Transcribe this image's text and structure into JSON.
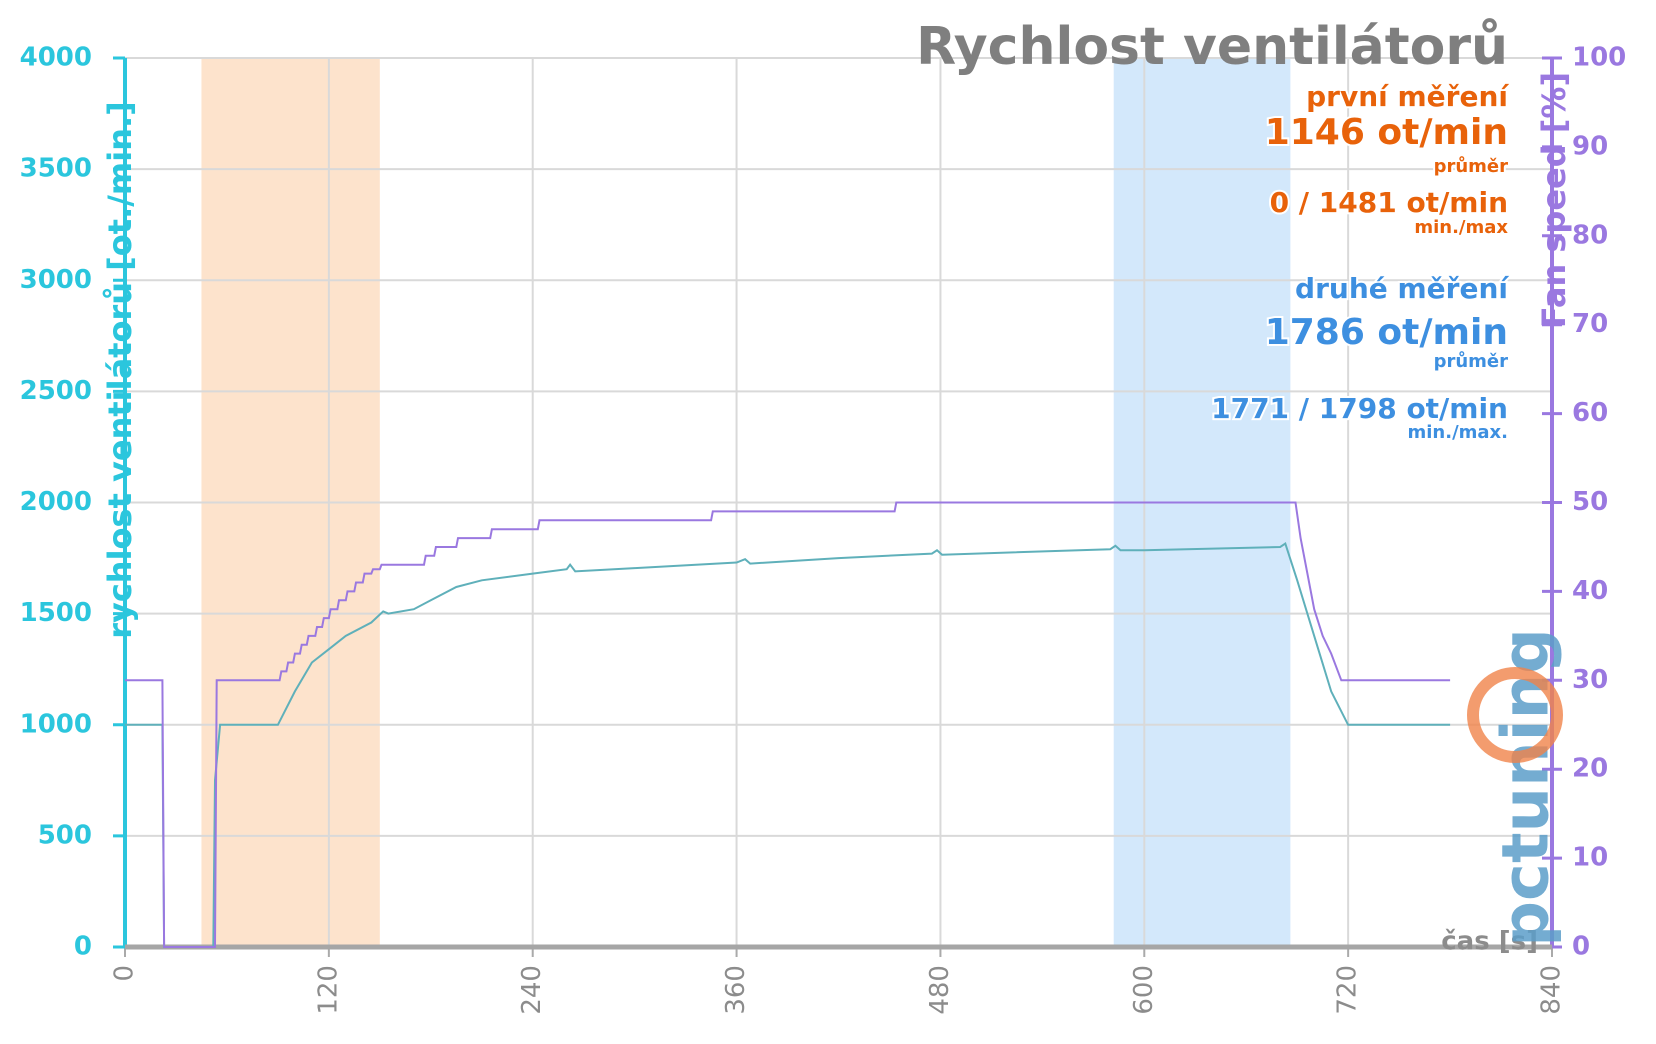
{
  "chart_data": {
    "type": "line",
    "title": "Rychlost ventilátorů",
    "ylabel": "rychlost ventilátorů [ot./min.]",
    "y2label": "Fan speed [%]",
    "xlabel": "čas [s]",
    "logo": "pctuning",
    "xlim": [
      0,
      840
    ],
    "xticks": [
      0,
      120,
      240,
      360,
      480,
      600,
      720,
      840
    ],
    "ylim": [
      0,
      4000
    ],
    "yticks": [
      0,
      500,
      1000,
      1500,
      2000,
      2500,
      3000,
      3500,
      4000
    ],
    "y2lim": [
      0,
      100
    ],
    "y2ticks": [
      0,
      10,
      20,
      30,
      40,
      50,
      60,
      70,
      80,
      90,
      100
    ],
    "grid": true,
    "highlights": [
      {
        "from": 45,
        "to": 150,
        "color": "#fde3cc"
      },
      {
        "from": 582,
        "to": 686,
        "color": "#d3e8fb"
      }
    ],
    "annotations": [
      {
        "text": "první měření",
        "color": "#e8620a",
        "size": 28
      },
      {
        "text": "1146 ot/min",
        "color": "#e8620a",
        "size": 36
      },
      {
        "text": "průměr",
        "color": "#e8620a",
        "size": 18
      },
      {
        "text": "0 / 1481 ot/min",
        "color": "#e8620a",
        "size": 28
      },
      {
        "text": "min./max",
        "color": "#e8620a",
        "size": 18
      },
      {
        "text": "druhé měření",
        "color": "#3d8fe0",
        "size": 28
      },
      {
        "text": "1786 ot/min",
        "color": "#3d8fe0",
        "size": 36
      },
      {
        "text": "průměr",
        "color": "#3d8fe0",
        "size": 18
      },
      {
        "text": "1771 / 1798 ot/min",
        "color": "#3d8fe0",
        "size": 28
      },
      {
        "text": "min./max.",
        "color": "#3d8fe0",
        "size": 18
      }
    ],
    "series": [
      {
        "color": "#5fb0ba",
        "x": [
          0,
          22,
          23,
          52,
          53,
          56,
          90,
          100,
          110,
          120,
          130,
          145,
          152,
          155,
          170,
          180,
          195,
          210,
          240,
          260,
          262,
          265,
          300,
          360,
          365,
          368,
          420,
          475,
          478,
          481,
          580,
          583,
          586,
          600,
          680,
          683,
          690,
          700,
          710,
          720,
          780
        ],
        "values": [
          1000,
          1000,
          0,
          0,
          750,
          1000,
          1000,
          1150,
          1280,
          1340,
          1400,
          1460,
          1510,
          1500,
          1520,
          1560,
          1620,
          1650,
          1680,
          1700,
          1720,
          1690,
          1705,
          1730,
          1745,
          1725,
          1750,
          1770,
          1785,
          1765,
          1790,
          1805,
          1785,
          1785,
          1800,
          1815,
          1650,
          1400,
          1150,
          1000,
          1000
        ]
      },
      {
        "color": "#9a78e0",
        "axis": "y2",
        "x": [
          0,
          22,
          23,
          53,
          54,
          91,
          92,
          95,
          96,
          99,
          100,
          103,
          104,
          107,
          108,
          112,
          113,
          116,
          117,
          120,
          121,
          125,
          126,
          130,
          131,
          135,
          136,
          140,
          141,
          145,
          146,
          150,
          151,
          176,
          177,
          182,
          183,
          195,
          196,
          215,
          216,
          243,
          244,
          345,
          346,
          453,
          454,
          689,
          692,
          696,
          700,
          705,
          710,
          716,
          780
        ],
        "values": [
          30,
          30,
          0,
          0,
          30,
          30,
          31,
          31,
          32,
          32,
          33,
          33,
          34,
          34,
          35,
          35,
          36,
          36,
          37,
          37,
          38,
          38,
          39,
          39,
          40,
          40,
          41,
          41,
          42,
          42,
          42.5,
          42.5,
          43,
          43,
          44,
          44,
          45,
          45,
          46,
          46,
          47,
          47,
          48,
          48,
          49,
          49,
          50,
          50,
          46,
          42,
          38,
          35,
          33,
          30,
          30
        ]
      }
    ]
  }
}
